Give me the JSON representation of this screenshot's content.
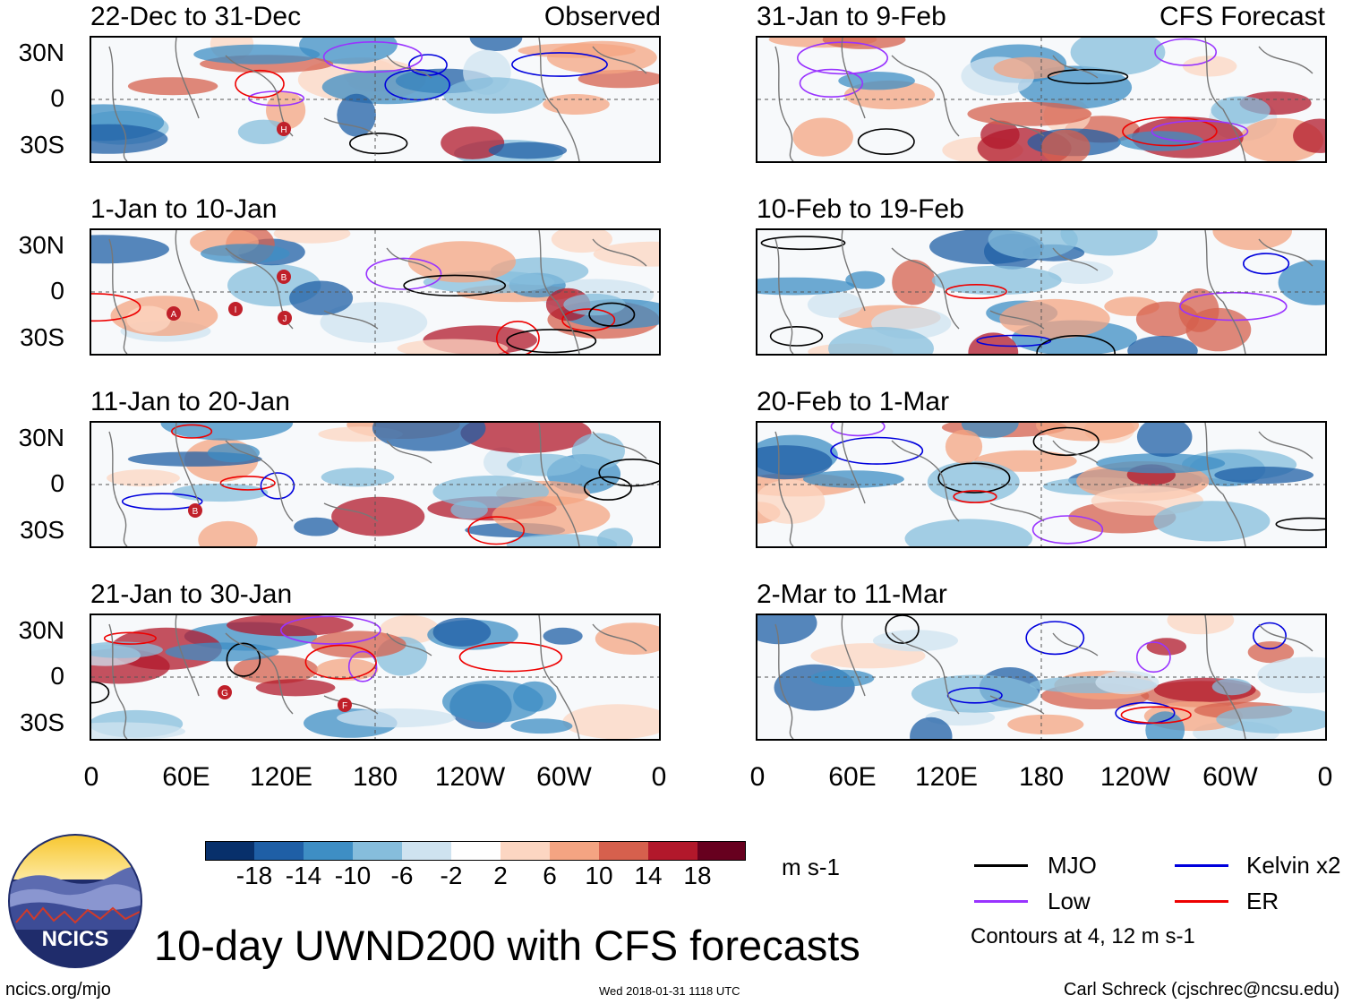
{
  "panels_left": [
    {
      "title": "22-Dec to 31-Dec",
      "label": "Observed"
    },
    {
      "title": "1-Jan to 10-Jan",
      "label": ""
    },
    {
      "title": "11-Jan to 20-Jan",
      "label": ""
    },
    {
      "title": "21-Jan to 30-Jan",
      "label": ""
    }
  ],
  "panels_right": [
    {
      "title": "31-Jan to 9-Feb",
      "label": "CFS Forecast"
    },
    {
      "title": "10-Feb to 19-Feb",
      "label": ""
    },
    {
      "title": "20-Feb to 1-Mar",
      "label": ""
    },
    {
      "title": "2-Mar to 11-Mar",
      "label": ""
    }
  ],
  "lat_labels": [
    "30N",
    "0",
    "30S"
  ],
  "lon_labels": [
    "0",
    "60E",
    "120E",
    "180",
    "120W",
    "60W",
    "0"
  ],
  "colorbar": {
    "ticks": [
      "-18",
      "-14",
      "-10",
      "-6",
      "-2",
      "2",
      "6",
      "10",
      "14",
      "18"
    ],
    "colors": [
      "#08306b",
      "#1f5fa6",
      "#3e8ec4",
      "#86bddc",
      "#cfe3f0",
      "#ffffff",
      "#fcd6c2",
      "#f4a482",
      "#d6604d",
      "#b2182b",
      "#67001f"
    ],
    "units": "m s-1"
  },
  "legend": {
    "items": [
      {
        "label": "MJO",
        "color": "#000000"
      },
      {
        "label": "Kelvin x2",
        "color": "#0000dd"
      },
      {
        "label": "Low",
        "color": "#9933ff"
      },
      {
        "label": "ER",
        "color": "#ee0000"
      }
    ],
    "contours_note": "Contours at 4, 12 m s-1"
  },
  "logo_text": "NCICS",
  "main_title": "10-day UWND200 with CFS forecasts",
  "footer": {
    "url": "ncics.org/mjo",
    "timestamp": "Wed 2018-01-31 1118 UTC",
    "author": "Carl Schreck (cjschrec@ncsu.edu)"
  },
  "storm_markers": [
    {
      "panel": "left-0",
      "letter": "H"
    },
    {
      "panel": "left-1",
      "letter": "B"
    },
    {
      "panel": "left-1",
      "letter": "A"
    },
    {
      "panel": "left-1",
      "letter": "I"
    },
    {
      "panel": "left-1",
      "letter": "J"
    },
    {
      "panel": "left-2",
      "letter": "B"
    },
    {
      "panel": "left-3",
      "letter": "G"
    },
    {
      "panel": "left-3",
      "letter": "F"
    }
  ]
}
